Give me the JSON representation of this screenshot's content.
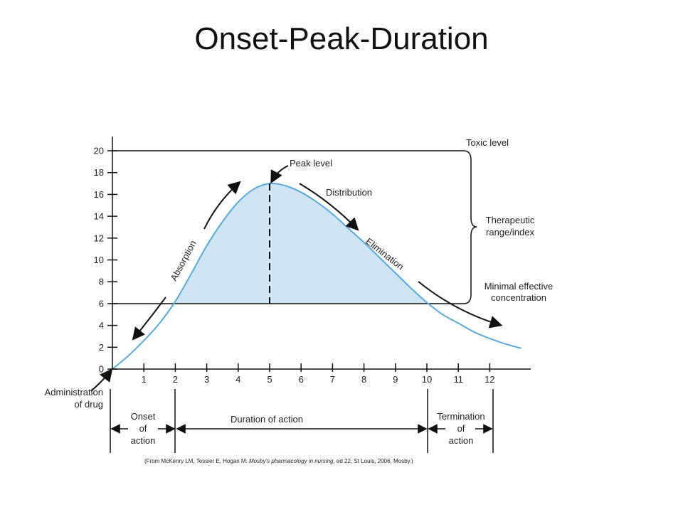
{
  "title": "Onset-Peak-Duration",
  "chart_data": {
    "type": "line",
    "x": [
      0,
      0.5,
      1,
      1.5,
      2,
      2.5,
      3,
      3.5,
      4,
      4.5,
      5,
      5.5,
      6,
      6.5,
      7,
      7.5,
      8,
      8.5,
      9,
      9.5,
      10,
      10.5,
      11,
      11.5,
      12,
      12.5,
      13
    ],
    "y": [
      0,
      1.2,
      2.6,
      4.2,
      6.2,
      8.7,
      11.3,
      13.5,
      15.3,
      16.5,
      17,
      16.8,
      16.2,
      15.3,
      14.2,
      12.9,
      11.6,
      10.2,
      8.8,
      7.4,
      6.1,
      5.0,
      4.2,
      3.4,
      2.8,
      2.3,
      1.9
    ],
    "x_ticks": [
      "1",
      "2",
      "3",
      "4",
      "5",
      "6",
      "7",
      "8",
      "9",
      "10",
      "11",
      "12"
    ],
    "y_ticks": [
      "0",
      "2",
      "4",
      "6",
      "8",
      "10",
      "12",
      "14",
      "16",
      "18",
      "20"
    ],
    "xlim": [
      0,
      13.2
    ],
    "ylim": [
      0,
      21
    ],
    "toxic_level": 20,
    "minimal_effective_concentration": 6,
    "peak": {
      "x": 5,
      "y": 17
    },
    "shaded_between_x": [
      2,
      10
    ],
    "grid": false,
    "line_color": "#5aa9d6",
    "fill_color": "#cfe4f5"
  },
  "annotations": {
    "toxic_level": "Toxic level",
    "peak_level": "Peak level",
    "distribution": "Distribution",
    "therapeutic_line1": "Therapeutic",
    "therapeutic_line2": "range/index",
    "elimination": "Elimination",
    "absorption": "Absorption",
    "mec_line1": "Minimal effective",
    "mec_line2": "concentration",
    "admin_line1": "Administration",
    "admin_line2": "of drug"
  },
  "phases": {
    "onset": [
      "Onset",
      "of",
      "action"
    ],
    "duration": "Duration of action",
    "termination": [
      "Termination",
      "of",
      "action"
    ]
  },
  "citation": {
    "prefix": "(From McKenry LM, Tessier E, Hogan M: ",
    "book": "Mosby's pharmacology in nursing",
    "suffix": ", ed 22, St Louis, 2006, Mosby.)"
  }
}
